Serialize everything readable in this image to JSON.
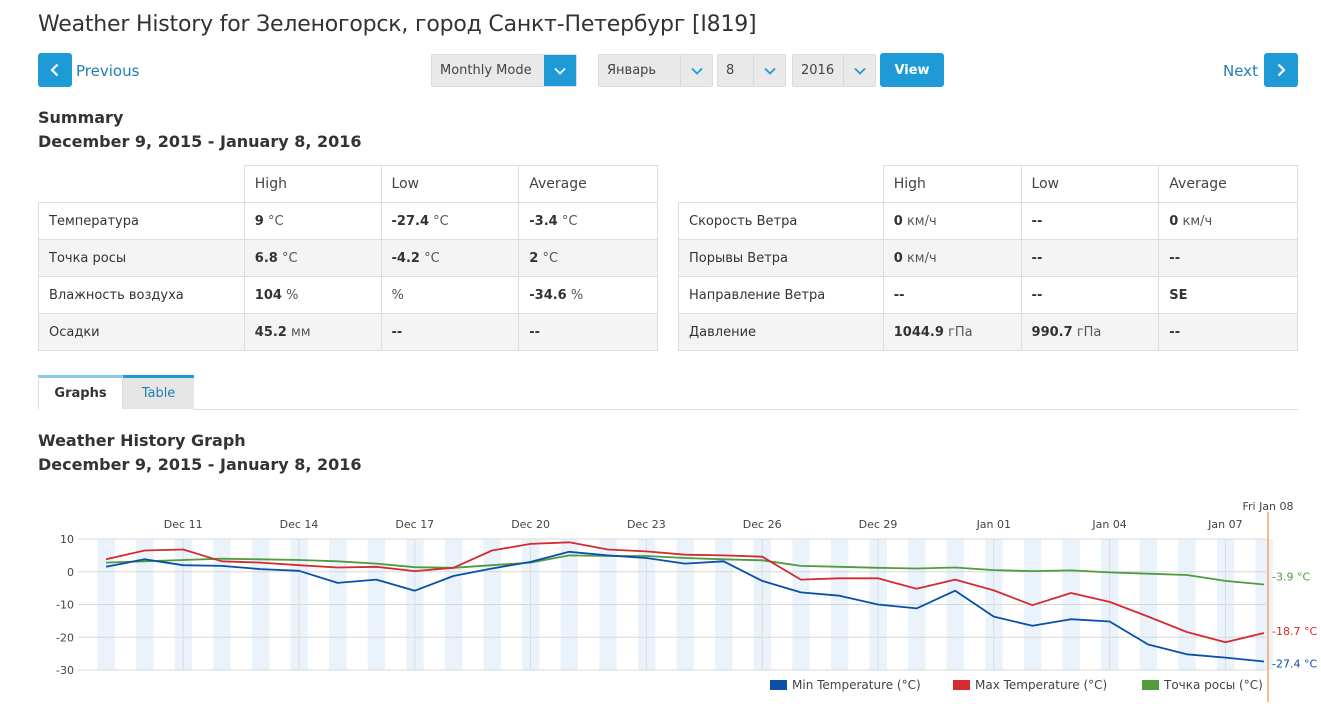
{
  "header": {
    "title": "Weather History for Зеленогорск, город Санкт-Петербург [I819]",
    "previous_label": "Previous",
    "next_label": "Next"
  },
  "controls": {
    "mode": "Monthly Mode",
    "month": "Январь",
    "day": "8",
    "year": "2016",
    "view_label": "View"
  },
  "summary": {
    "title": "Summary",
    "dates": "December 9, 2015 - January 8, 2016",
    "left_table": {
      "headers": [
        "High",
        "Low",
        "Average"
      ],
      "rows": [
        {
          "label": "Температура",
          "cells": [
            {
              "v": "9",
              "u": "°C"
            },
            {
              "v": "-27.4",
              "u": "°C"
            },
            {
              "v": "-3.4",
              "u": "°C"
            }
          ]
        },
        {
          "label": "Точка росы",
          "cells": [
            {
              "v": "6.8",
              "u": "°C"
            },
            {
              "v": "-4.2",
              "u": "°C"
            },
            {
              "v": "2",
              "u": "°C"
            }
          ]
        },
        {
          "label": "Влажность воздуха",
          "cells": [
            {
              "v": "104",
              "u": "%"
            },
            {
              "v": "",
              "u": "%"
            },
            {
              "v": "-34.6",
              "u": "%"
            }
          ]
        },
        {
          "label": "Осадки",
          "cells": [
            {
              "v": "45.2",
              "u": "мм"
            },
            {
              "v": "--",
              "u": ""
            },
            {
              "v": "--",
              "u": ""
            }
          ]
        }
      ]
    },
    "right_table": {
      "headers": [
        "High",
        "Low",
        "Average"
      ],
      "rows": [
        {
          "label": "Скорость Ветра",
          "cells": [
            {
              "v": "0",
              "u": "км/ч"
            },
            {
              "v": "--",
              "u": ""
            },
            {
              "v": "0",
              "u": "км/ч"
            }
          ]
        },
        {
          "label": "Порывы Ветра",
          "cells": [
            {
              "v": "0",
              "u": "км/ч"
            },
            {
              "v": "--",
              "u": ""
            },
            {
              "v": "--",
              "u": ""
            }
          ]
        },
        {
          "label": "Направление Ветра",
          "cells": [
            {
              "v": "--",
              "u": ""
            },
            {
              "v": "--",
              "u": ""
            },
            {
              "v": "SE",
              "u": ""
            }
          ]
        },
        {
          "label": "Давление",
          "cells": [
            {
              "v": "1044.9",
              "u": "гПа"
            },
            {
              "v": "990.7",
              "u": "гПа"
            },
            {
              "v": "--",
              "u": ""
            }
          ]
        }
      ]
    }
  },
  "tabs": [
    {
      "label": "Graphs",
      "active": true
    },
    {
      "label": "Table",
      "active": false
    }
  ],
  "graph": {
    "title": "Weather History Graph",
    "dates": "December 9, 2015 - January 8, 2016"
  },
  "chart_data": {
    "type": "line",
    "x": [
      "Dec 09",
      "Dec 10",
      "Dec 11",
      "Dec 12",
      "Dec 13",
      "Dec 14",
      "Dec 15",
      "Dec 16",
      "Dec 17",
      "Dec 18",
      "Dec 19",
      "Dec 20",
      "Dec 21",
      "Dec 22",
      "Dec 23",
      "Dec 24",
      "Dec 25",
      "Dec 26",
      "Dec 27",
      "Dec 28",
      "Dec 29",
      "Dec 30",
      "Dec 31",
      "Jan 01",
      "Jan 02",
      "Jan 03",
      "Jan 04",
      "Jan 05",
      "Jan 06",
      "Jan 07",
      "Jan 08"
    ],
    "x_tick_labels": [
      "Dec 11",
      "Dec 14",
      "Dec 17",
      "Dec 20",
      "Dec 23",
      "Dec 26",
      "Dec 29",
      "Jan 01",
      "Jan 04",
      "Jan 07"
    ],
    "x_tick_indices": [
      2,
      5,
      8,
      11,
      14,
      17,
      20,
      23,
      26,
      29
    ],
    "cursor_label": "Fri Jan 08",
    "ylim": [
      -30,
      10
    ],
    "yticks": [
      10,
      0,
      -10,
      -20,
      -30
    ],
    "series": [
      {
        "name": "Min Temperature (°C)",
        "color": "#0a4fa8",
        "values": [
          1.5,
          3.8,
          2,
          1.8,
          0.8,
          0.3,
          -3.4,
          -2.4,
          -5.8,
          -1.3,
          1,
          3,
          6.1,
          5,
          4.2,
          2.5,
          3.2,
          -2.8,
          -6.3,
          -7.3,
          -10,
          -11.2,
          -5.8,
          -13.7,
          -16.5,
          -14.5,
          -15.2,
          -22.2,
          -25.2,
          -26.2,
          -27.4
        ],
        "end_label": "-27.4 °C"
      },
      {
        "name": "Max Temperature (°C)",
        "color": "#d42a30",
        "values": [
          3.8,
          6.5,
          6.8,
          3.2,
          2.8,
          2,
          1.3,
          1.5,
          0.2,
          1.2,
          6.5,
          8.5,
          9,
          6.8,
          6.2,
          5.2,
          5,
          4.6,
          -2.4,
          -2,
          -2,
          -5.2,
          -2.4,
          -5.7,
          -10.2,
          -6.5,
          -9.2,
          -13.7,
          -18.4,
          -21.5,
          -18.7
        ],
        "end_label": "-18.7 °C"
      },
      {
        "name": "Точка росы (°C)",
        "color": "#4f9b3e",
        "values": [
          2.8,
          3.2,
          3.6,
          4,
          3.8,
          3.6,
          3.2,
          2.5,
          1.4,
          1.2,
          2,
          2.8,
          5,
          4.8,
          4.8,
          4.2,
          3.8,
          3.5,
          1.8,
          1.5,
          1.2,
          1,
          1.3,
          0.5,
          0.2,
          0.4,
          -0.2,
          -0.6,
          -1,
          -2.8,
          -3.9
        ],
        "end_label": "-3.9 °C"
      }
    ]
  }
}
